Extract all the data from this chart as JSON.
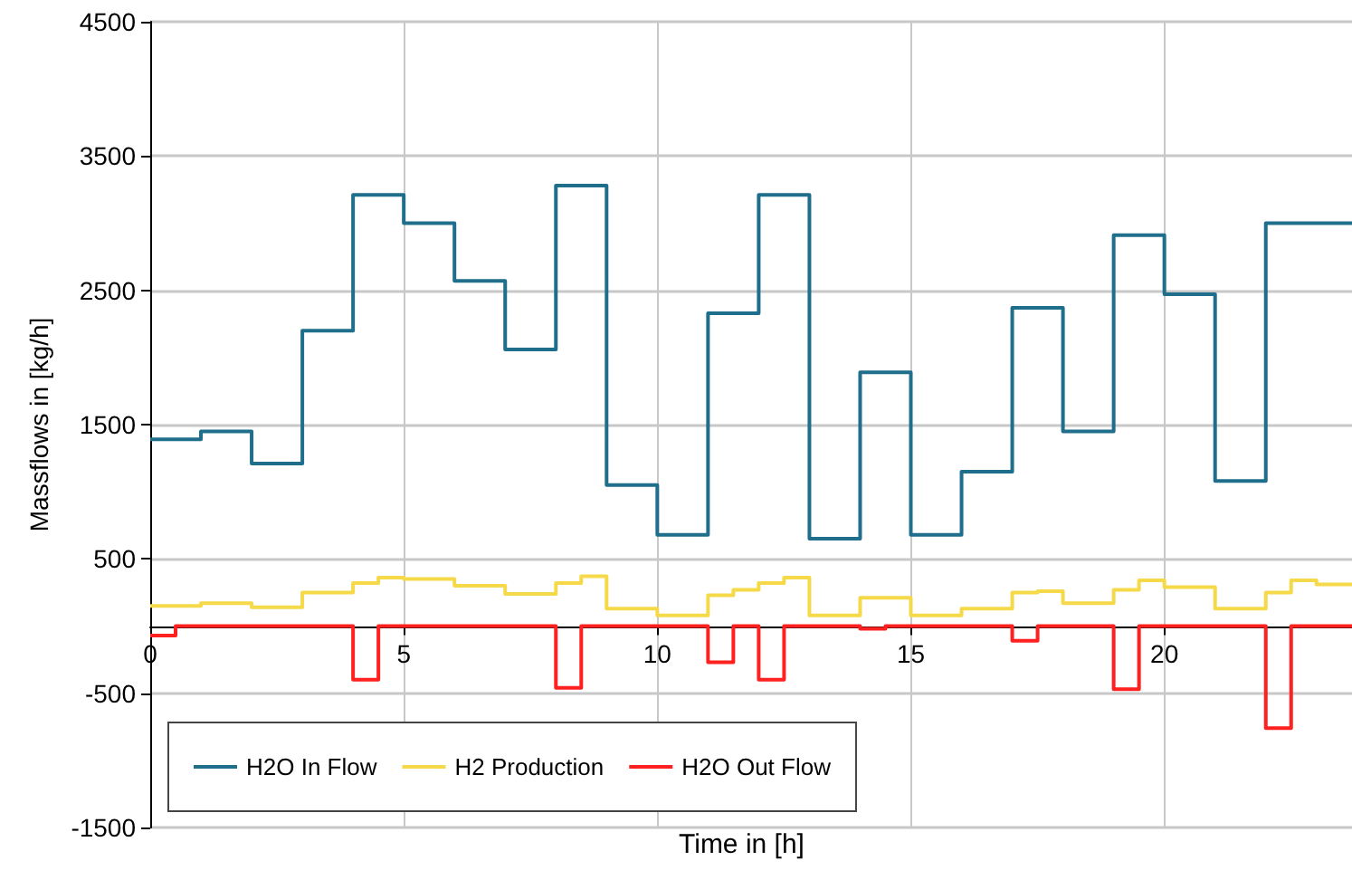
{
  "chart_data": {
    "type": "step",
    "xlabel": "Time in [h]",
    "ylabel": "Massflows in [kg/h]",
    "xlim": [
      0,
      23.7
    ],
    "xticks": [
      0,
      5,
      10,
      15,
      20
    ],
    "ylim": [
      -1500,
      4500
    ],
    "yticks": [
      -1500,
      -500,
      500,
      1500,
      2500,
      3500,
      4500
    ],
    "grid": true,
    "legend": "bottom left",
    "series": [
      {
        "name": "H2O In Flow",
        "color": "#1f6e8c",
        "x": [
          0,
          1,
          2,
          3,
          4,
          5,
          6,
          7,
          8,
          9,
          10,
          11,
          12,
          13,
          14,
          15,
          16,
          17,
          18,
          19,
          20,
          21,
          22,
          23,
          23.7
        ],
        "values": [
          1390,
          1450,
          1210,
          2200,
          3210,
          3000,
          2570,
          2060,
          3280,
          1050,
          680,
          2330,
          3210,
          650,
          1890,
          680,
          1150,
          2370,
          1450,
          2910,
          2470,
          1080,
          3000,
          3000,
          3000
        ]
      },
      {
        "name": "H2 Production",
        "color": "#f5d949",
        "x": [
          0,
          1,
          2,
          3,
          4,
          4.5,
          5,
          6,
          7,
          8,
          8.5,
          9,
          10,
          11,
          11.5,
          12,
          12.5,
          13,
          14,
          15,
          16,
          17,
          17.5,
          18,
          19,
          19.5,
          20,
          21,
          22,
          22.5,
          23,
          23.7
        ],
        "values": [
          150,
          170,
          140,
          250,
          320,
          360,
          350,
          300,
          240,
          320,
          370,
          130,
          80,
          230,
          270,
          320,
          360,
          80,
          210,
          80,
          130,
          250,
          260,
          170,
          270,
          340,
          290,
          130,
          250,
          340,
          310,
          310
        ]
      },
      {
        "name": "H2O Out Flow",
        "color": "#ff2020",
        "x": [
          0,
          0.5,
          4,
          4.5,
          8,
          8.5,
          11,
          11.5,
          12,
          12.5,
          14,
          14.5,
          17,
          17.5,
          19,
          19.5,
          22,
          22.5,
          23.7
        ],
        "values": [
          -70,
          0,
          -400,
          0,
          -460,
          0,
          -270,
          0,
          -400,
          0,
          -20,
          0,
          -110,
          0,
          -470,
          0,
          -760,
          0,
          0
        ]
      }
    ]
  }
}
